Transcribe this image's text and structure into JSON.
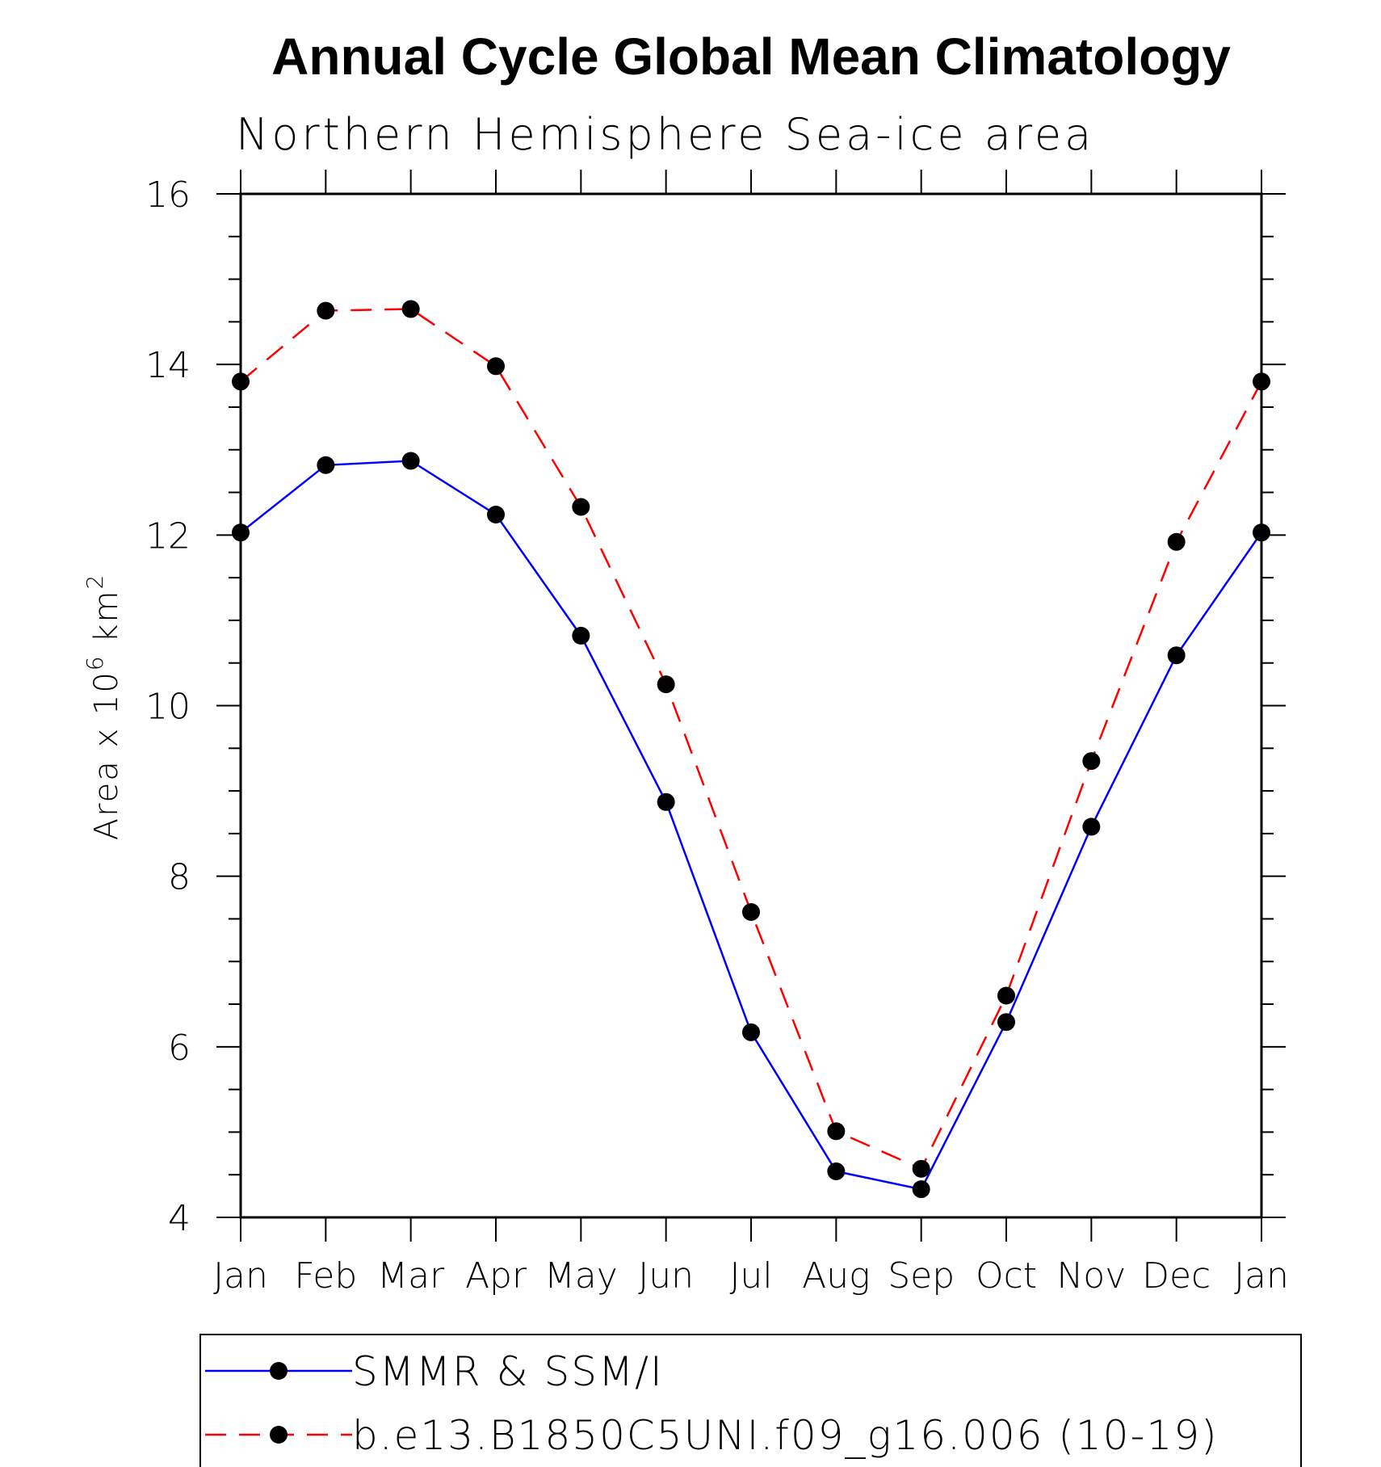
{
  "chart_data": {
    "type": "line",
    "title": "Annual Cycle Global Mean Climatology",
    "subtitle": "Northern Hemisphere Sea-ice area",
    "ylabel": "Area x 10",
    "ylabel_sup1": "6",
    "ylabel_unit": " km",
    "ylabel_sup2": "2",
    "xlabel": "",
    "categories": [
      "Jan",
      "Feb",
      "Mar",
      "Apr",
      "May",
      "Jun",
      "Jul",
      "Aug",
      "Sep",
      "Oct",
      "Nov",
      "Dec",
      "Jan"
    ],
    "ylim": [
      4,
      16
    ],
    "yticks": [
      4,
      6,
      8,
      10,
      12,
      14,
      16
    ],
    "grid": false,
    "legend_position": "bottom",
    "series": [
      {
        "name": "SMMR & SSM/I",
        "color": "#0000ff",
        "style": "solid",
        "marker": "filled-circle",
        "values": [
          12.03,
          12.82,
          12.87,
          12.24,
          10.82,
          8.87,
          6.17,
          4.54,
          4.33,
          6.29,
          8.58,
          10.59,
          12.03
        ]
      },
      {
        "name": "b.e13.B1850C5UNI.f09_g16.006 (10-19)",
        "color": "#ff0000",
        "style": "dashed",
        "marker": "filled-circle",
        "values": [
          13.8,
          14.63,
          14.65,
          13.98,
          12.33,
          10.25,
          7.58,
          5.01,
          4.57,
          6.6,
          9.35,
          11.92,
          13.8
        ]
      }
    ]
  }
}
